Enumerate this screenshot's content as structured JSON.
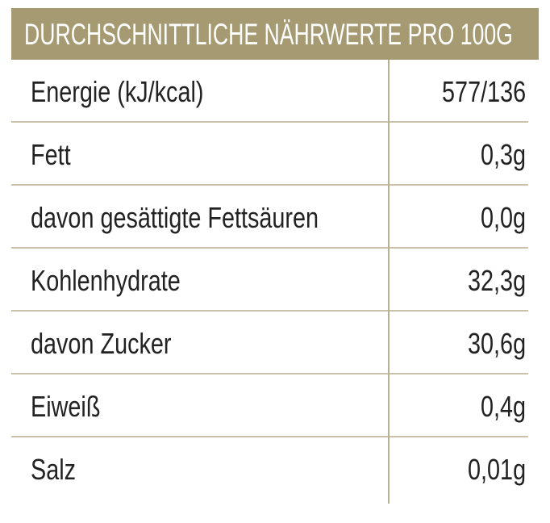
{
  "table": {
    "title": "DURCHSCHNITTLICHE NÄHRWERTE PRO 100G",
    "rows": [
      [
        "Energie (kJ/kcal)",
        "577/136"
      ],
      [
        "Fett",
        "0,3g"
      ],
      [
        "davon gesättigte Fettsäuren",
        "0,0g"
      ],
      [
        "Kohlenhydrate",
        "32,3g"
      ],
      [
        "davon Zucker",
        "30,6g"
      ],
      [
        "Eiweiß",
        "0,4g"
      ],
      [
        "Salz",
        "0,01g"
      ]
    ]
  }
}
